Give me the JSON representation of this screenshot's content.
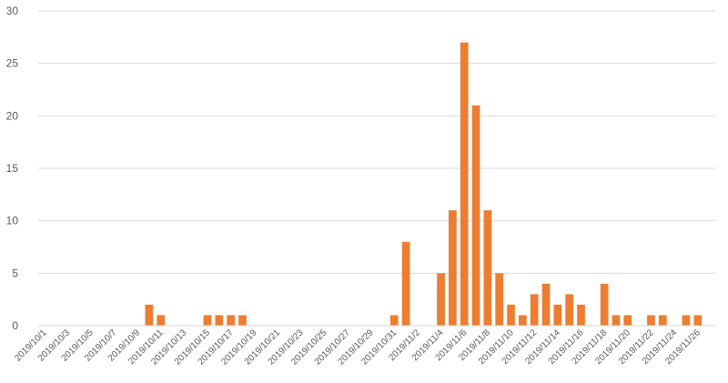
{
  "chart_data": {
    "type": "bar",
    "title": "",
    "xlabel": "",
    "ylabel": "",
    "ylim": [
      0,
      30
    ],
    "yticks": [
      0,
      5,
      10,
      15,
      20,
      25,
      30
    ],
    "grid": true,
    "legend": "none",
    "bar_color": "#ED7D31",
    "categories": [
      "2019/10/1",
      "2019/10/2",
      "2019/10/3",
      "2019/10/4",
      "2019/10/5",
      "2019/10/6",
      "2019/10/7",
      "2019/10/8",
      "2019/10/9",
      "2019/10/10",
      "2019/10/11",
      "2019/10/12",
      "2019/10/13",
      "2019/10/14",
      "2019/10/15",
      "2019/10/16",
      "2019/10/17",
      "2019/10/18",
      "2019/10/19",
      "2019/10/20",
      "2019/10/21",
      "2019/10/22",
      "2019/10/23",
      "2019/10/24",
      "2019/10/25",
      "2019/10/26",
      "2019/10/27",
      "2019/10/28",
      "2019/10/29",
      "2019/10/30",
      "2019/10/31",
      "2019/11/1",
      "2019/11/2",
      "2019/11/3",
      "2019/11/4",
      "2019/11/5",
      "2019/11/6",
      "2019/11/7",
      "2019/11/8",
      "2019/11/9",
      "2019/11/10",
      "2019/11/11",
      "2019/11/12",
      "2019/11/13",
      "2019/11/14",
      "2019/11/15",
      "2019/11/16",
      "2019/11/17",
      "2019/11/18",
      "2019/11/19",
      "2019/11/20",
      "2019/11/21",
      "2019/11/22",
      "2019/11/23",
      "2019/11/24",
      "2019/11/25",
      "2019/11/26",
      "2019/11/27"
    ],
    "values": [
      0,
      0,
      0,
      0,
      0,
      0,
      0,
      0,
      0,
      2,
      1,
      0,
      0,
      0,
      1,
      1,
      1,
      1,
      0,
      0,
      0,
      0,
      0,
      0,
      0,
      0,
      0,
      0,
      0,
      0,
      1,
      8,
      0,
      0,
      5,
      11,
      27,
      21,
      11,
      5,
      2,
      1,
      3,
      4,
      2,
      3,
      2,
      0,
      4,
      1,
      1,
      0,
      1,
      1,
      0,
      1,
      1,
      0
    ],
    "tick_labels": [
      "2019/10/1",
      "2019/10/3",
      "2019/10/5",
      "2019/10/7",
      "2019/10/9",
      "2019/10/11",
      "2019/10/13",
      "2019/10/15",
      "2019/10/17",
      "2019/10/19",
      "2019/10/21",
      "2019/10/23",
      "2019/10/25",
      "2019/10/27",
      "2019/10/29",
      "2019/10/31",
      "2019/11/2",
      "2019/11/4",
      "2019/11/6",
      "2019/11/8",
      "2019/11/10",
      "2019/11/12",
      "2019/11/14",
      "2019/11/16",
      "2019/11/18",
      "2019/11/20",
      "2019/11/22",
      "2019/11/24",
      "2019/11/26"
    ]
  }
}
